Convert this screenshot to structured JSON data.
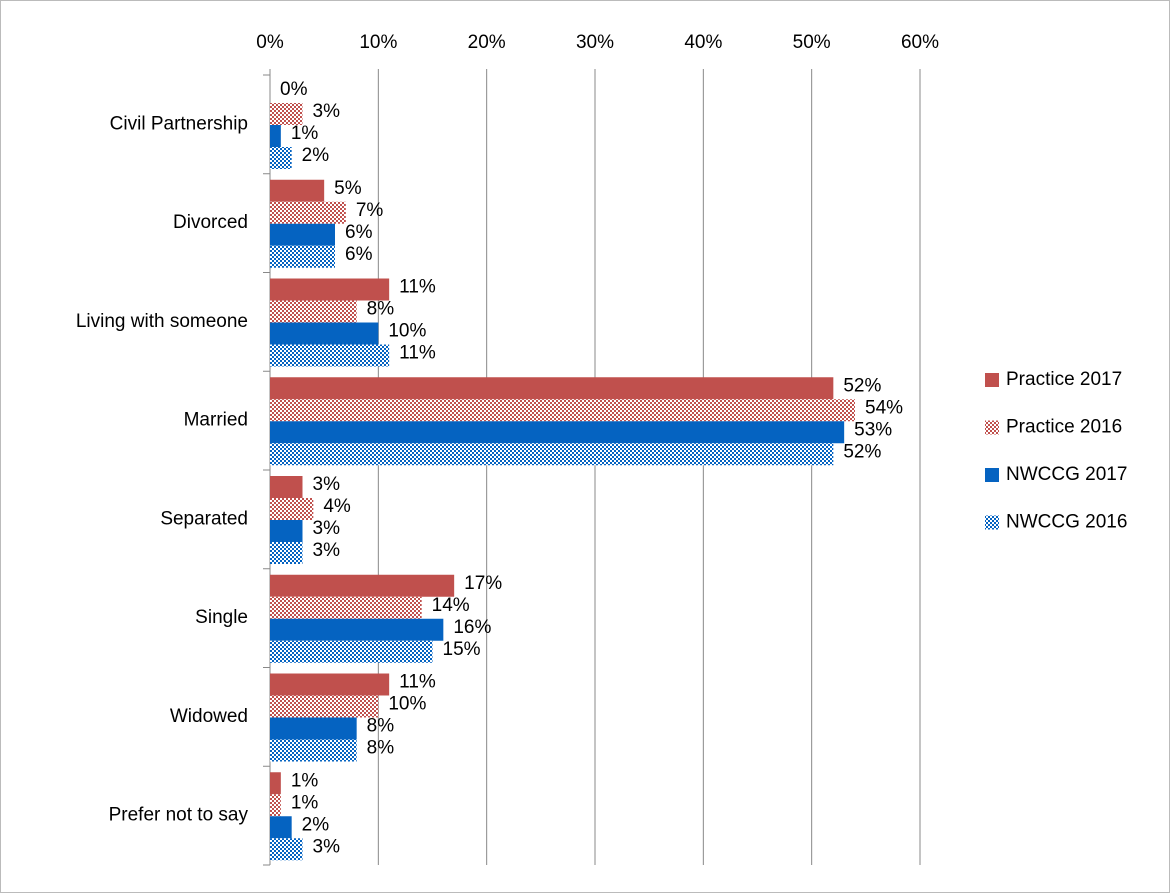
{
  "chart_data": {
    "type": "hbar",
    "categories": [
      "Civil Partnership",
      "Divorced",
      "Living with someone",
      "Married",
      "Separated",
      "Single",
      "Widowed",
      "Prefer not to say"
    ],
    "series": [
      {
        "name": "Practice 2017",
        "color": "#c0504d",
        "values": [
          0,
          5,
          11,
          52,
          3,
          17,
          11,
          1
        ],
        "value_labels": [
          "0%",
          "5%",
          "11%",
          "52%",
          "3%",
          "17%",
          "11%",
          "1%"
        ]
      },
      {
        "name": "Practice 2016",
        "color": "#c0504d",
        "pattern": "checker",
        "values": [
          3,
          7,
          8,
          54,
          4,
          14,
          10,
          1
        ],
        "value_labels": [
          "3%",
          "7%",
          "8%",
          "54%",
          "4%",
          "14%",
          "10%",
          "1%"
        ]
      },
      {
        "name": "NWCCG 2017",
        "color": "#0563c1",
        "values": [
          1,
          6,
          10,
          53,
          3,
          16,
          8,
          2
        ],
        "value_labels": [
          "1%",
          "6%",
          "10%",
          "53%",
          "3%",
          "16%",
          "8%",
          "2%"
        ]
      },
      {
        "name": "NWCCG 2016",
        "color": "#0563c1",
        "pattern": "checker",
        "values": [
          2,
          6,
          11,
          52,
          3,
          15,
          8,
          3
        ],
        "value_labels": [
          "2%",
          "6%",
          "11%",
          "52%",
          "3%",
          "15%",
          "8%",
          "3%"
        ]
      }
    ],
    "xlim": [
      0,
      60
    ],
    "xticks": [
      {
        "value": 0,
        "label": "0%"
      },
      {
        "value": 10,
        "label": "10%"
      },
      {
        "value": 20,
        "label": "20%"
      },
      {
        "value": 30,
        "label": "30%"
      },
      {
        "value": 40,
        "label": "40%"
      },
      {
        "value": 50,
        "label": "50%"
      },
      {
        "value": 60,
        "label": "60%"
      }
    ],
    "grid": true,
    "legend": "right"
  }
}
